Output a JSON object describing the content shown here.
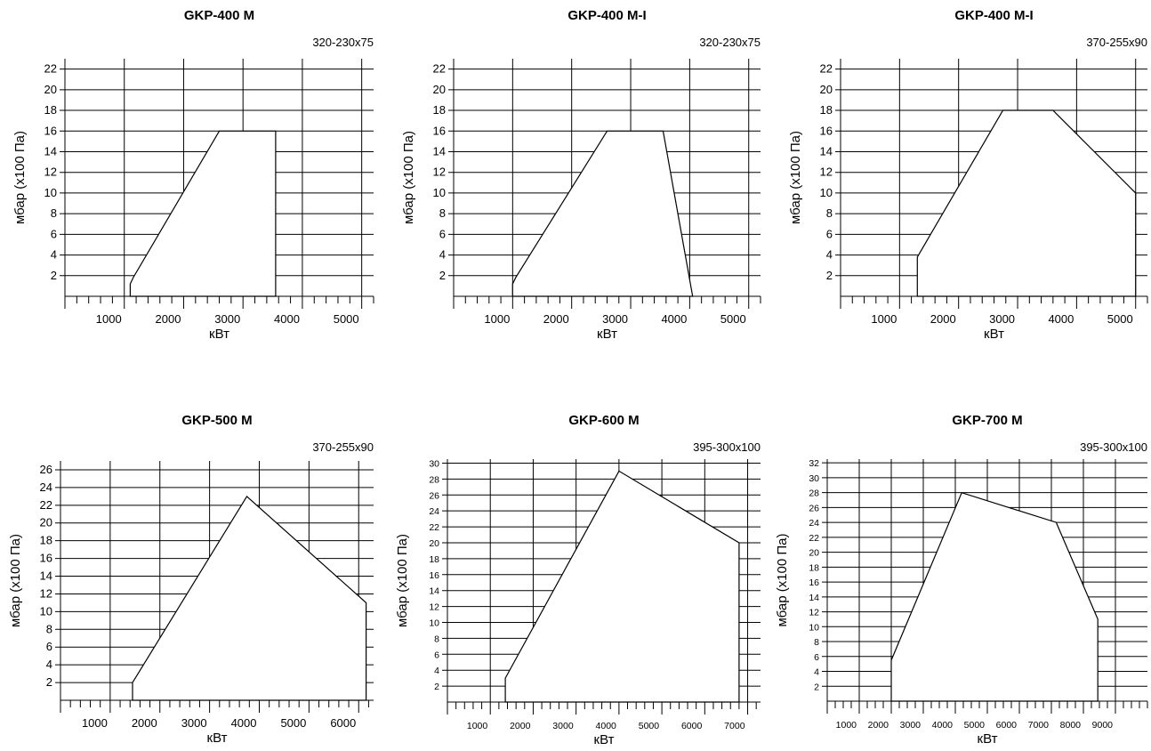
{
  "chart_data": [
    {
      "type": "area",
      "title": "GKP-400 M",
      "subtitle": "320-230x75",
      "xlabel": "кВт",
      "ylabel": "мбар (x100 Па)",
      "xlim": [
        0,
        5200
      ],
      "ylim": [
        0,
        23
      ],
      "xticks": [
        1000,
        2000,
        3000,
        4000,
        5000
      ],
      "yticks": [
        2,
        4,
        6,
        8,
        10,
        12,
        14,
        16,
        18,
        20,
        22
      ],
      "x_minor_step": 200,
      "grid": true,
      "series": [
        {
          "x": [
            1100,
            1100,
            1150,
            2600,
            3550,
            3550
          ],
          "y": [
            0,
            1.2,
            1.8,
            16,
            16,
            0
          ]
        }
      ]
    },
    {
      "type": "area",
      "title": "GKP-400 M-I",
      "subtitle": "320-230x75",
      "xlabel": "кВт",
      "ylabel": "мбар (x100 Па)",
      "xlim": [
        0,
        5200
      ],
      "ylim": [
        0,
        23
      ],
      "xticks": [
        1000,
        2000,
        3000,
        4000,
        5000
      ],
      "yticks": [
        2,
        4,
        6,
        8,
        10,
        12,
        14,
        16,
        18,
        20,
        22
      ],
      "x_minor_step": 200,
      "grid": true,
      "series": [
        {
          "x": [
            1000,
            1000,
            1050,
            2600,
            3550,
            4050
          ],
          "y": [
            0,
            1.2,
            1.8,
            16,
            16,
            0
          ]
        }
      ]
    },
    {
      "type": "area",
      "title": "GKP-400 M-I",
      "subtitle": "370-255x90",
      "xlabel": "кВт",
      "ylabel": "мбар (x100 Па)",
      "xlim": [
        0,
        5200
      ],
      "ylim": [
        0,
        23
      ],
      "xticks": [
        1000,
        2000,
        3000,
        4000,
        5000
      ],
      "yticks": [
        2,
        4,
        6,
        8,
        10,
        12,
        14,
        16,
        18,
        20,
        22
      ],
      "x_minor_step": 200,
      "grid": true,
      "series": [
        {
          "x": [
            1300,
            1300,
            2750,
            3600,
            5000,
            5000
          ],
          "y": [
            0,
            3.8,
            18,
            18,
            10,
            0
          ]
        }
      ]
    },
    {
      "type": "area",
      "title": "GKP-500 M",
      "subtitle": "370-255x90",
      "xlabel": "кВт",
      "ylabel": "мбар (x100 Па)",
      "xlim": [
        0,
        6300
      ],
      "ylim": [
        0,
        27
      ],
      "xticks": [
        1000,
        2000,
        3000,
        4000,
        5000,
        6000
      ],
      "yticks": [
        2,
        4,
        6,
        8,
        10,
        12,
        14,
        16,
        18,
        20,
        22,
        24,
        26
      ],
      "x_minor_step": 200,
      "grid": true,
      "series": [
        {
          "x": [
            1450,
            1450,
            3750,
            6150,
            6150
          ],
          "y": [
            0,
            2,
            23,
            11,
            0
          ]
        }
      ]
    },
    {
      "type": "area",
      "title": "GKP-600 M",
      "subtitle": "395-300x100",
      "xlabel": "кВт",
      "ylabel": "мбар (x100 Па)",
      "xlim": [
        0,
        7300
      ],
      "ylim": [
        0,
        30.5
      ],
      "xticks": [
        1000,
        2000,
        3000,
        4000,
        5000,
        6000,
        7000
      ],
      "yticks": [
        2,
        4,
        6,
        8,
        10,
        12,
        14,
        16,
        18,
        20,
        22,
        24,
        26,
        28,
        30
      ],
      "x_minor_step": 200,
      "grid": true,
      "series": [
        {
          "x": [
            1350,
            1350,
            4000,
            6800,
            6800
          ],
          "y": [
            0,
            3,
            29,
            20,
            0
          ]
        }
      ]
    },
    {
      "type": "area",
      "title": "GKP-700 M",
      "subtitle": "395-300x100",
      "xlabel": "кВт",
      "ylabel": "мбар (x100 Па)",
      "xlim": [
        0,
        10000
      ],
      "ylim": [
        0,
        32.5
      ],
      "xticks": [
        1000,
        2000,
        3000,
        4000,
        5000,
        6000,
        7000,
        8000,
        9000
      ],
      "yticks": [
        2,
        4,
        6,
        8,
        10,
        12,
        14,
        16,
        18,
        20,
        22,
        24,
        26,
        28,
        30,
        32
      ],
      "x_minor_step": 250,
      "grid": true,
      "series": [
        {
          "x": [
            2000,
            2000,
            4200,
            7150,
            8450,
            8450
          ],
          "y": [
            0,
            5.5,
            28,
            24,
            11,
            0
          ]
        }
      ]
    }
  ]
}
